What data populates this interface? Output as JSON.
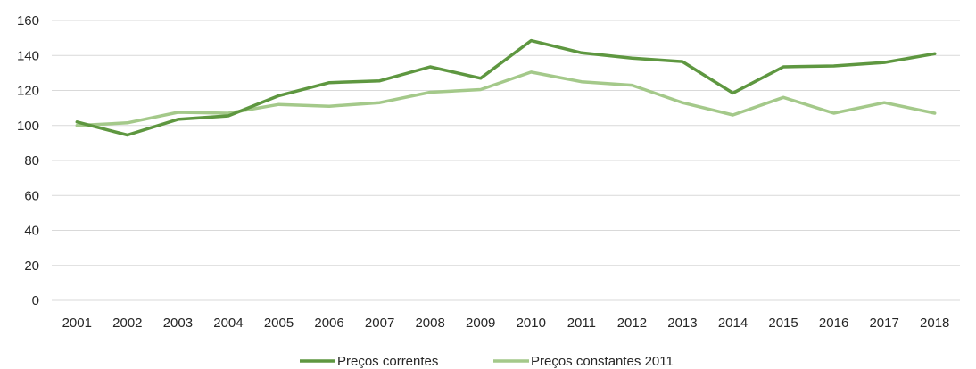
{
  "chart_data": {
    "type": "line",
    "title": "",
    "xlabel": "",
    "ylabel": "",
    "categories": [
      "2001",
      "2002",
      "2003",
      "2004",
      "2005",
      "2006",
      "2007",
      "2008",
      "2009",
      "2010",
      "2011",
      "2012",
      "2013",
      "2014",
      "2015",
      "2016",
      "2017",
      "2018"
    ],
    "ylim": [
      0,
      160
    ],
    "yticks": [
      0,
      20,
      40,
      60,
      80,
      100,
      120,
      140,
      160
    ],
    "grid": true,
    "legend_position": "bottom",
    "series": [
      {
        "name": "Preços correntes",
        "color": "#5e9740",
        "values": [
          102,
          94.5,
          103.5,
          105.5,
          117,
          124.5,
          125.5,
          133.5,
          127,
          148.5,
          141.5,
          138.5,
          136.5,
          118.5,
          133.5,
          134,
          136,
          141
        ]
      },
      {
        "name": "Preços constantes 2011",
        "color": "#a4c98a",
        "values": [
          100,
          101.5,
          107.5,
          107,
          112,
          111,
          113,
          119,
          120.5,
          130.5,
          125,
          123,
          113,
          106,
          116,
          107,
          113,
          107
        ]
      }
    ]
  }
}
